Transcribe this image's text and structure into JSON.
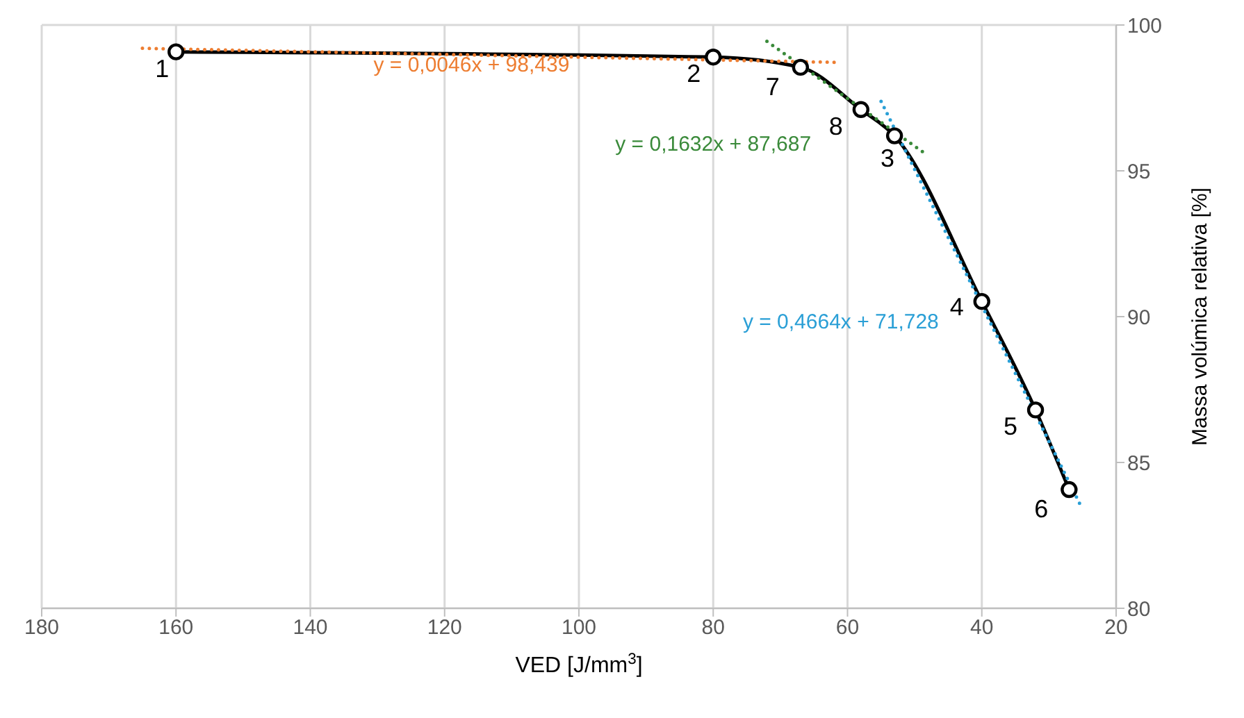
{
  "chart_data": {
    "type": "line",
    "xlabel": "VED [J/mm$^{3}$]",
    "ylabel": "Massa volúmica relativa [%]",
    "xlim": [
      180,
      20
    ],
    "xticks": [
      180,
      160,
      140,
      120,
      100,
      80,
      60,
      40,
      20
    ],
    "ylim": [
      80,
      100
    ],
    "yticks": [
      80,
      85,
      90,
      95,
      100
    ],
    "grid": true,
    "series": [
      {
        "x": [
          160,
          80,
          67,
          58,
          53,
          40,
          32,
          27
        ],
        "values": [
          99.08,
          98.9,
          98.55,
          97.1,
          96.2,
          90.52,
          86.8,
          84.07
        ],
        "color": "#000000",
        "marker": "circle",
        "line_style": "solid"
      },
      {
        "type": "line",
        "name": "y = 0,0046x + 98,439",
        "color": "#ed7d31",
        "x": [
          165,
          62
        ],
        "values": [
          99.2,
          98.72
        ],
        "marker": "none",
        "line_style": "dotted"
      },
      {
        "type": "line",
        "name": "y = 0,1632x + 87,687",
        "color": "#3a8a3a",
        "x": [
          72,
          48
        ],
        "values": [
          99.44,
          95.52
        ],
        "marker": "none",
        "line_style": "dotted"
      },
      {
        "type": "line",
        "name": "y = 0,4664x + 71,728",
        "color": "#2a9fd6",
        "x": [
          55,
          25
        ],
        "values": [
          97.38,
          83.39
        ],
        "marker": "none",
        "line_style": "dotted"
      }
    ],
    "annotations": [
      {
        "text": "1",
        "x": 160,
        "y": 99.08
      },
      {
        "text": "2",
        "x": 80,
        "y": 98.9
      },
      {
        "text": "7",
        "x": 67,
        "y": 98.55
      },
      {
        "text": "8",
        "x": 58,
        "y": 97.1
      },
      {
        "text": "3",
        "x": 53,
        "y": 96.2
      },
      {
        "text": "4",
        "x": 40,
        "y": 90.52
      },
      {
        "text": "5",
        "x": 32,
        "y": 86.8
      },
      {
        "text": "6",
        "x": 27,
        "y": 84.07
      }
    ]
  }
}
